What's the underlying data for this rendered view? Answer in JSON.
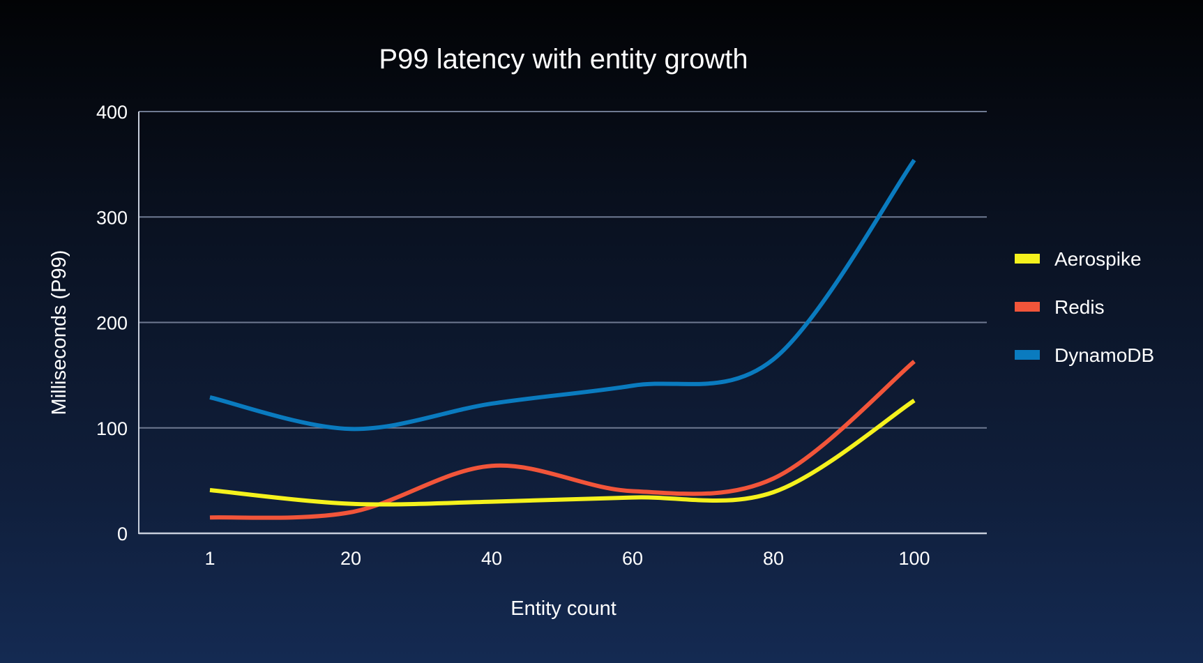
{
  "chart_data": {
    "type": "line",
    "title": "P99 latency with entity growth",
    "xlabel": "Entity count",
    "ylabel": "Milliseconds (P99)",
    "x": [
      1,
      20,
      40,
      60,
      80,
      100
    ],
    "x_tick_labels": [
      "1",
      "20",
      "40",
      "60",
      "80",
      "100"
    ],
    "y_tick_labels": [
      "0",
      "100",
      "200",
      "300",
      "400"
    ],
    "ylim": [
      0,
      400
    ],
    "grid": true,
    "legend_position": "right",
    "series": [
      {
        "name": "Aerospike",
        "color": "#f5f21d",
        "values": [
          41,
          28,
          30,
          34,
          39,
          126
        ]
      },
      {
        "name": "Redis",
        "color": "#f2553a",
        "values": [
          15,
          20,
          64,
          40,
          52,
          163
        ]
      },
      {
        "name": "DynamoDB",
        "color": "#0a7bbf",
        "values": [
          129,
          99,
          123,
          140,
          165,
          354
        ]
      }
    ]
  }
}
